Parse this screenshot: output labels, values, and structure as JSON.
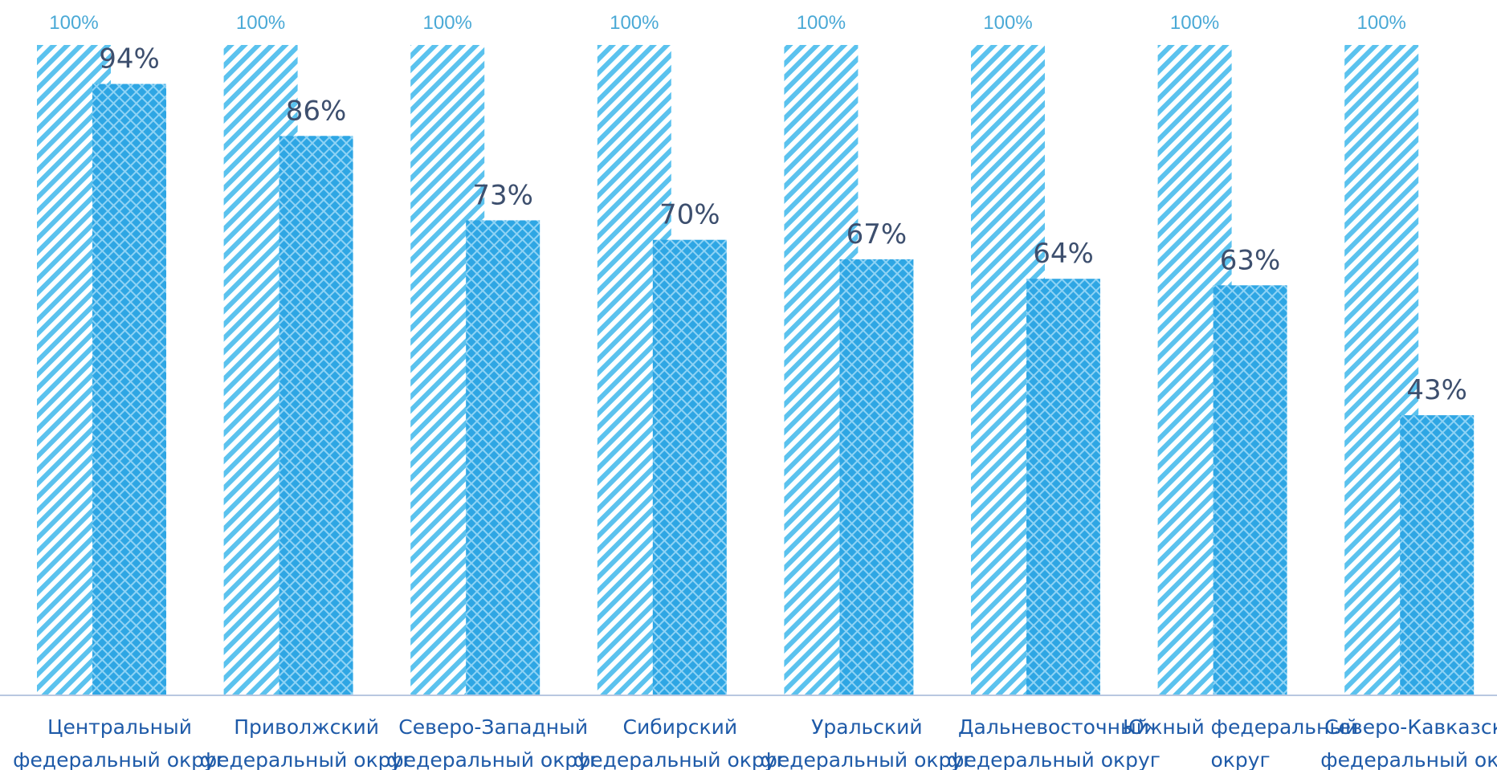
{
  "chart_data": {
    "type": "bar",
    "categories": [
      [
        "Центральный",
        "федеральный округ"
      ],
      [
        "Приволжский",
        "федеральный округ"
      ],
      [
        "Северо-Западный",
        "федеральный округ"
      ],
      [
        "Сибирский",
        "федеральный округ"
      ],
      [
        "Уральский",
        "федеральный округ"
      ],
      [
        "Дальневосточный",
        "федеральный округ"
      ],
      [
        "Южный федеральный",
        "округ"
      ],
      [
        "Северо-Кавказский",
        "федеральный округ"
      ]
    ],
    "series": [
      {
        "values": [
          100,
          100,
          100,
          100,
          100,
          100,
          100,
          100
        ],
        "labels": [
          "100%",
          "100%",
          "100%",
          "100%",
          "100%",
          "100%",
          "100%",
          "100%"
        ],
        "color": "#5bc2ee",
        "pattern": "diagonal-stripes"
      },
      {
        "values": [
          94,
          86,
          73,
          70,
          67,
          64,
          63,
          43
        ],
        "labels": [
          "94%",
          "86%",
          "73%",
          "70%",
          "67%",
          "64%",
          "63%",
          "43%"
        ],
        "color": "#3aaee8",
        "pattern": "crosshatch"
      }
    ],
    "ylim": [
      0,
      100
    ],
    "grid": false,
    "legend": "none"
  }
}
